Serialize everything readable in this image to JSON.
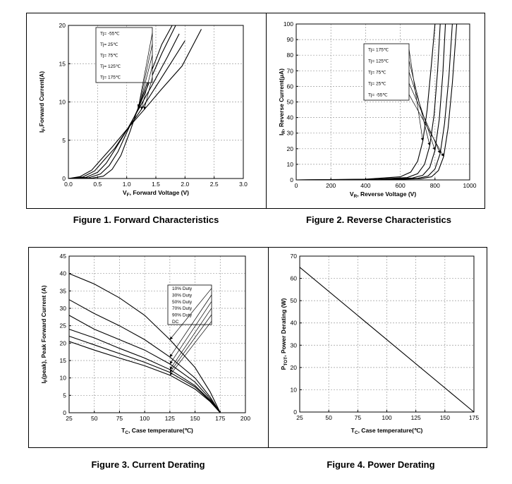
{
  "captions": {
    "fig1": "Figure 1. Forward Characteristics",
    "fig2": "Figure 2. Reverse Characteristics",
    "fig3": "Figure 3. Current Derating",
    "fig4": "Figure 4. Power Derating"
  },
  "chart_data": [
    {
      "type": "line",
      "caption": "Figure 1. Forward Characteristics",
      "xlabel_main": "V",
      "xlabel_sub": "F",
      "xlabel_rest": ", Forward Voltage (V)",
      "ylabel_main": "I",
      "ylabel_sub": "F",
      "ylabel_rest": ",Forward Current(A)",
      "xlim": [
        0,
        3.0
      ],
      "ylim": [
        0,
        20
      ],
      "xticks": [
        "0.0",
        "0.5",
        "1.0",
        "1.5",
        "2.0",
        "2.5",
        "3.0"
      ],
      "yticks": [
        "0",
        "5",
        "10",
        "15",
        "20"
      ],
      "grid": true,
      "legend_position": "top-left",
      "series": [
        {
          "name": "Tj= -55℃",
          "x": [
            0,
            0.4,
            0.6,
            0.75,
            0.9,
            1.05,
            1.2,
            1.4,
            1.6,
            1.78
          ],
          "y": [
            0,
            0.05,
            0.3,
            1.2,
            3.0,
            6.0,
            9.3,
            13.5,
            17.5,
            20
          ]
        },
        {
          "name": "Tj= 25℃",
          "x": [
            0,
            0.35,
            0.55,
            0.7,
            0.85,
            1.0,
            1.2,
            1.4,
            1.6,
            1.84
          ],
          "y": [
            0,
            0.1,
            0.6,
            1.7,
            3.5,
            6.0,
            9.2,
            12.8,
            16.3,
            20
          ]
        },
        {
          "name": "Tj= 75℃",
          "x": [
            0,
            0.3,
            0.5,
            0.65,
            0.8,
            1.0,
            1.2,
            1.45,
            1.7,
            1.9
          ],
          "y": [
            0,
            0.15,
            0.8,
            2.0,
            3.8,
            6.3,
            9.0,
            12.4,
            15.9,
            18.9
          ]
        },
        {
          "name": "Tj= 125℃",
          "x": [
            0,
            0.25,
            0.45,
            0.6,
            0.8,
            1.0,
            1.25,
            1.5,
            1.75,
            2.0
          ],
          "y": [
            0,
            0.2,
            1.0,
            2.3,
            4.0,
            6.3,
            9.0,
            12.0,
            15.0,
            18.0
          ]
        },
        {
          "name": "Tj= 175℃",
          "x": [
            0,
            0.2,
            0.4,
            0.55,
            0.75,
            1.0,
            1.3,
            1.6,
            1.95,
            2.28
          ],
          "y": [
            0,
            0.25,
            1.1,
            2.4,
            4.1,
            6.4,
            9.0,
            11.7,
            14.7,
            19.5
          ]
        }
      ]
    },
    {
      "type": "line",
      "caption": "Figure 2. Reverse Characteristics",
      "xlabel_main": "V",
      "xlabel_sub": "R",
      "xlabel_rest": ", Reverse Voltage (V)",
      "ylabel_main": "I",
      "ylabel_sub": "R",
      "ylabel_rest": ", Reverse Current(μA)",
      "xlim": [
        0,
        1000
      ],
      "ylim": [
        0,
        100
      ],
      "xticks": [
        "0",
        "200",
        "400",
        "600",
        "800",
        "1000"
      ],
      "yticks": [
        "0",
        "10",
        "20",
        "30",
        "40",
        "50",
        "60",
        "70",
        "80",
        "90",
        "100"
      ],
      "grid": true,
      "legend_position": "top-left",
      "series": [
        {
          "name": "Tj= 175℃",
          "x": [
            0,
            400,
            600,
            660,
            700,
            730,
            755,
            780,
            800
          ],
          "y": [
            0,
            0.5,
            2,
            5,
            12,
            25,
            45,
            75,
            100
          ]
        },
        {
          "name": "Tj= 125℃",
          "x": [
            0,
            450,
            640,
            700,
            740,
            770,
            795,
            815,
            830
          ],
          "y": [
            0,
            0.4,
            1.5,
            4,
            10,
            22,
            42,
            70,
            100
          ]
        },
        {
          "name": "Tj= 75℃",
          "x": [
            0,
            480,
            670,
            730,
            770,
            800,
            825,
            845,
            860
          ],
          "y": [
            0,
            0.3,
            1.2,
            3,
            8,
            19,
            39,
            68,
            100
          ]
        },
        {
          "name": "Tj= 25℃",
          "x": [
            0,
            500,
            700,
            760,
            800,
            830,
            855,
            880,
            900
          ],
          "y": [
            0,
            0.2,
            1,
            2.5,
            7,
            17,
            36,
            66,
            100
          ]
        },
        {
          "name": "Tj= -55℃",
          "x": [
            0,
            520,
            720,
            780,
            820,
            850,
            875,
            900,
            925
          ],
          "y": [
            0,
            0.1,
            0.8,
            2,
            6,
            15,
            33,
            62,
            100
          ]
        }
      ]
    },
    {
      "type": "line",
      "caption": "Figure 3. Current Derating",
      "xlabel_main": "T",
      "xlabel_sub": "C",
      "xlabel_rest": ", Case temperature(℃)",
      "ylabel_main": "I",
      "ylabel_sub": "F",
      "ylabel_rest": "(peak), Peak Forward Current (A)",
      "xlim": [
        25,
        200
      ],
      "ylim": [
        0,
        45
      ],
      "xticks": [
        "25",
        "50",
        "75",
        "100",
        "125",
        "150",
        "175",
        "200"
      ],
      "yticks": [
        "0",
        "5",
        "10",
        "15",
        "20",
        "25",
        "30",
        "35",
        "40",
        "45"
      ],
      "grid": true,
      "legend_position": "top-right",
      "series": [
        {
          "name": "10% Duty",
          "x": [
            25,
            50,
            75,
            100,
            125,
            150,
            165,
            175
          ],
          "y": [
            40,
            37,
            33,
            28,
            21,
            13,
            6,
            0
          ]
        },
        {
          "name": "30% Duty",
          "x": [
            25,
            50,
            75,
            100,
            125,
            150,
            165,
            175
          ],
          "y": [
            32.5,
            28.5,
            25,
            21,
            16,
            10,
            4.5,
            0
          ]
        },
        {
          "name": "50% Duty",
          "x": [
            25,
            50,
            75,
            100,
            125,
            150,
            165,
            175
          ],
          "y": [
            28,
            24,
            21,
            18,
            14,
            8.8,
            4,
            0
          ]
        },
        {
          "name": "70% Duty",
          "x": [
            25,
            50,
            75,
            100,
            125,
            150,
            165,
            175
          ],
          "y": [
            24,
            21.5,
            18.5,
            15.7,
            12.4,
            7.8,
            3.6,
            0
          ]
        },
        {
          "name": "90% Duty",
          "x": [
            25,
            50,
            75,
            100,
            125,
            150,
            165,
            175
          ],
          "y": [
            22,
            19.5,
            17,
            14.5,
            11.6,
            7.4,
            3.4,
            0
          ]
        },
        {
          "name": "DC",
          "x": [
            25,
            50,
            75,
            100,
            125,
            150,
            165,
            175
          ],
          "y": [
            20.5,
            18,
            15.7,
            13.5,
            10.8,
            6.8,
            3.2,
            0
          ]
        }
      ]
    },
    {
      "type": "line",
      "caption": "Figure 4. Power Derating",
      "xlabel_main": "T",
      "xlabel_sub": "C",
      "xlabel_rest": ", Case temperature(℃)",
      "ylabel_main": "P",
      "ylabel_sub": "TOT",
      "ylabel_rest": ", Power Derating (W)",
      "xlim": [
        25,
        175
      ],
      "ylim": [
        0,
        70
      ],
      "xticks": [
        "25",
        "50",
        "75",
        "100",
        "125",
        "150",
        "175"
      ],
      "yticks": [
        "0",
        "10",
        "20",
        "30",
        "40",
        "50",
        "60",
        "70"
      ],
      "grid": true,
      "series": [
        {
          "name": "",
          "x": [
            25,
            175
          ],
          "y": [
            65,
            0
          ]
        }
      ]
    }
  ]
}
